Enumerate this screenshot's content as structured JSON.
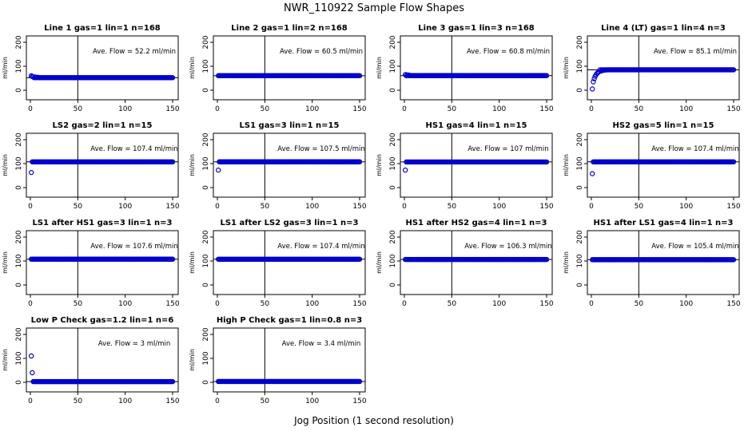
{
  "figure": {
    "title": "NWR_110922  Sample Flow Shapes",
    "xlabel": "Jog Position (1 second resolution)"
  },
  "colors": {
    "points": "#0000cc",
    "axes": "#000000",
    "background": "#ffffff"
  },
  "chart_data": [
    {
      "type": "scatter",
      "title": "Line 1 gas=1 lin=1 n=168",
      "ylabel": "ml/min",
      "annotation": "Ave. Flow =  52.2  ml/min",
      "mean": 52.2,
      "xlim": [
        0,
        150
      ],
      "ylim": [
        0,
        200
      ],
      "xticks": [
        0,
        50,
        100,
        150
      ],
      "yticks": [
        0,
        100,
        200
      ],
      "vline": 50,
      "grid": false,
      "initial": [
        [
          1,
          60
        ],
        [
          2,
          57
        ],
        [
          3,
          56
        ],
        [
          5,
          55
        ],
        [
          8,
          54
        ]
      ]
    },
    {
      "type": "scatter",
      "title": "Line 2 gas=1 lin=2 n=168",
      "ylabel": "ml/min",
      "annotation": "Ave. Flow =  60.5  ml/min",
      "mean": 60.5,
      "xlim": [
        0,
        150
      ],
      "ylim": [
        0,
        200
      ],
      "xticks": [
        0,
        50,
        100,
        150
      ],
      "yticks": [
        0,
        100,
        200
      ],
      "vline": 50,
      "grid": false,
      "initial": []
    },
    {
      "type": "scatter",
      "title": "Line 3 gas=1 lin=3 n=168",
      "ylabel": "ml/min",
      "annotation": "Ave. Flow =  60.8  ml/min",
      "mean": 60.8,
      "xlim": [
        0,
        150
      ],
      "ylim": [
        0,
        200
      ],
      "xticks": [
        0,
        50,
        100,
        150
      ],
      "yticks": [
        0,
        100,
        200
      ],
      "vline": 50,
      "grid": false,
      "initial": [
        [
          1,
          65
        ],
        [
          3,
          64
        ],
        [
          5,
          63
        ]
      ]
    },
    {
      "type": "scatter",
      "title": "Line 4 (LT) gas=1 lin=4 n=3",
      "ylabel": "ml/min",
      "annotation": "Ave. Flow =  85.1  ml/min",
      "mean": 85.1,
      "xlim": [
        0,
        150
      ],
      "ylim": [
        0,
        200
      ],
      "xticks": [
        0,
        50,
        100,
        150
      ],
      "yticks": [
        0,
        100,
        200
      ],
      "vline": 50,
      "grid": false,
      "initial": [
        [
          1,
          5
        ],
        [
          2,
          35
        ],
        [
          3,
          48
        ],
        [
          4,
          58
        ],
        [
          5,
          65
        ],
        [
          6,
          70
        ],
        [
          7,
          74
        ],
        [
          8,
          77
        ],
        [
          10,
          80
        ],
        [
          12,
          82
        ],
        [
          15,
          84
        ]
      ]
    },
    {
      "type": "scatter",
      "title": "LS2 gas=2 lin=1 n=15",
      "ylabel": "ml/min",
      "annotation": "Ave. Flow =  107.4  ml/min",
      "mean": 107.4,
      "xlim": [
        0,
        150
      ],
      "ylim": [
        0,
        200
      ],
      "xticks": [
        0,
        50,
        100,
        150
      ],
      "yticks": [
        0,
        100,
        200
      ],
      "vline": 50,
      "grid": false,
      "initial": [
        [
          1,
          63
        ]
      ]
    },
    {
      "type": "scatter",
      "title": "LS1 gas=3 lin=1 n=15",
      "ylabel": "ml/min",
      "annotation": "Ave. Flow =  107.5  ml/min",
      "mean": 107.5,
      "xlim": [
        0,
        150
      ],
      "ylim": [
        0,
        200
      ],
      "xticks": [
        0,
        50,
        100,
        150
      ],
      "yticks": [
        0,
        100,
        200
      ],
      "vline": 50,
      "grid": false,
      "initial": [
        [
          1,
          73
        ]
      ]
    },
    {
      "type": "scatter",
      "title": "HS1 gas=4 lin=1 n=15",
      "ylabel": "ml/min",
      "annotation": "Ave. Flow =  107  ml/min",
      "mean": 107,
      "xlim": [
        0,
        150
      ],
      "ylim": [
        0,
        200
      ],
      "xticks": [
        0,
        50,
        100,
        150
      ],
      "yticks": [
        0,
        100,
        200
      ],
      "vline": 50,
      "grid": false,
      "initial": [
        [
          1,
          73
        ]
      ]
    },
    {
      "type": "scatter",
      "title": "HS2 gas=5 lin=1 n=15",
      "ylabel": "ml/min",
      "annotation": "Ave. Flow =  107.4  ml/min",
      "mean": 107.4,
      "xlim": [
        0,
        150
      ],
      "ylim": [
        0,
        200
      ],
      "xticks": [
        0,
        50,
        100,
        150
      ],
      "yticks": [
        0,
        100,
        200
      ],
      "vline": 50,
      "grid": false,
      "initial": [
        [
          1,
          58
        ]
      ]
    },
    {
      "type": "scatter",
      "title": "LS1 after HS1 gas=3 lin=1 n=3",
      "ylabel": "ml/min",
      "annotation": "Ave. Flow =  107.6  ml/min",
      "mean": 107.6,
      "xlim": [
        0,
        150
      ],
      "ylim": [
        0,
        200
      ],
      "xticks": [
        0,
        50,
        100,
        150
      ],
      "yticks": [
        0,
        100,
        200
      ],
      "vline": 50,
      "grid": false,
      "initial": []
    },
    {
      "type": "scatter",
      "title": "LS1 after LS2 gas=3 lin=1 n=3",
      "ylabel": "ml/min",
      "annotation": "Ave. Flow =  107.4  ml/min",
      "mean": 107.4,
      "xlim": [
        0,
        150
      ],
      "ylim": [
        0,
        200
      ],
      "xticks": [
        0,
        50,
        100,
        150
      ],
      "yticks": [
        0,
        100,
        200
      ],
      "vline": 50,
      "grid": false,
      "initial": []
    },
    {
      "type": "scatter",
      "title": "HS1 after HS2 gas=4 lin=1 n=3",
      "ylabel": "ml/min",
      "annotation": "Ave. Flow =  106.3  ml/min",
      "mean": 106.3,
      "xlim": [
        0,
        150
      ],
      "ylim": [
        0,
        200
      ],
      "xticks": [
        0,
        50,
        100,
        150
      ],
      "yticks": [
        0,
        100,
        200
      ],
      "vline": 50,
      "grid": false,
      "initial": []
    },
    {
      "type": "scatter",
      "title": "HS1 after LS1 gas=4 lin=1 n=3",
      "ylabel": "ml/min",
      "annotation": "Ave. Flow =  105.4  ml/min",
      "mean": 105.4,
      "xlim": [
        0,
        150
      ],
      "ylim": [
        0,
        200
      ],
      "xticks": [
        0,
        50,
        100,
        150
      ],
      "yticks": [
        0,
        100,
        200
      ],
      "vline": 50,
      "grid": false,
      "initial": []
    },
    {
      "type": "scatter",
      "title": "Low P Check gas=1.2 lin=1 n=6",
      "ylabel": "ml/min",
      "annotation": "Ave. Flow =  3  ml/min",
      "mean": 3,
      "xlim": [
        0,
        150
      ],
      "ylim": [
        0,
        200
      ],
      "xticks": [
        0,
        50,
        100,
        150
      ],
      "yticks": [
        0,
        100,
        200
      ],
      "vline": 50,
      "grid": false,
      "initial": [
        [
          1,
          110
        ],
        [
          2,
          40
        ]
      ]
    },
    {
      "type": "scatter",
      "title": "High P Check gas=1 lin=0.8 n=3",
      "ylabel": "ml/min",
      "annotation": "Ave. Flow =  3.4  ml/min",
      "mean": 3.4,
      "xlim": [
        0,
        150
      ],
      "ylim": [
        0,
        200
      ],
      "xticks": [
        0,
        50,
        100,
        150
      ],
      "yticks": [
        0,
        100,
        200
      ],
      "vline": 50,
      "grid": false,
      "initial": []
    }
  ]
}
